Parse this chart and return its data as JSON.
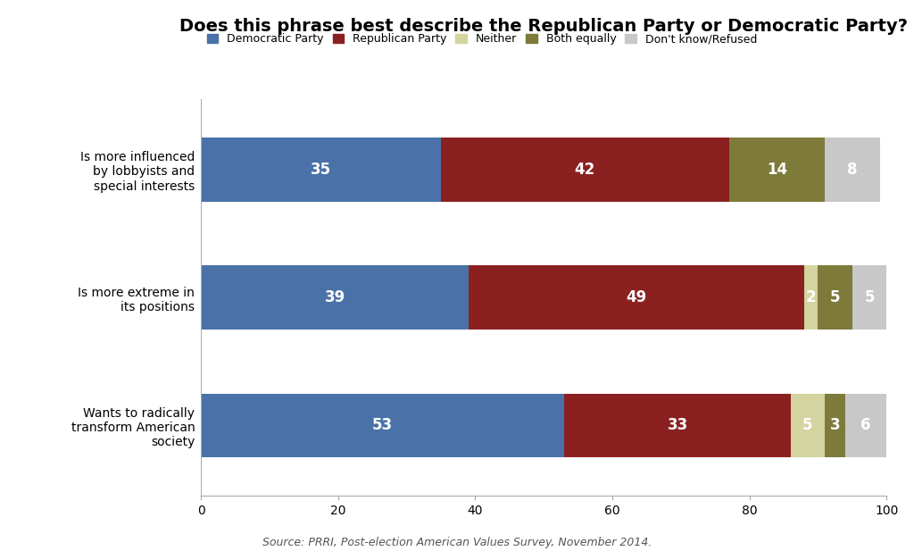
{
  "title": "Does this phrase best describe the Republican Party or Democratic Party?",
  "categories": [
    "Is more influenced\nby lobbyists and\nspecial interests",
    "Is more extreme in\nits positions",
    "Wants to radically\ntransform American\nsociety"
  ],
  "series": {
    "Democratic Party": [
      35,
      39,
      53
    ],
    "Republican Party": [
      42,
      49,
      33
    ],
    "Neither": [
      0,
      2,
      5
    ],
    "Both equally": [
      14,
      5,
      3
    ],
    "Don't know/Refused": [
      8,
      5,
      6
    ]
  },
  "colors": {
    "Democratic Party": "#4a72a8",
    "Republican Party": "#8b2020",
    "Neither": "#d4d4a0",
    "Both equally": "#7d7a3a",
    "Don't know/Refused": "#c8c8c8"
  },
  "legend_order": [
    "Democratic Party",
    "Republican Party",
    "Neither",
    "Both equally",
    "Don't know/Refused"
  ],
  "xlabel_source": "Source: PRRI, Post-election American Values Survey, November 2014.",
  "xlim": [
    0,
    100
  ],
  "bar_height": 0.5,
  "background_color": "#ffffff",
  "text_color_light": "#ffffff",
  "value_fontsize": 12,
  "label_fontsize": 10,
  "title_fontsize": 14
}
